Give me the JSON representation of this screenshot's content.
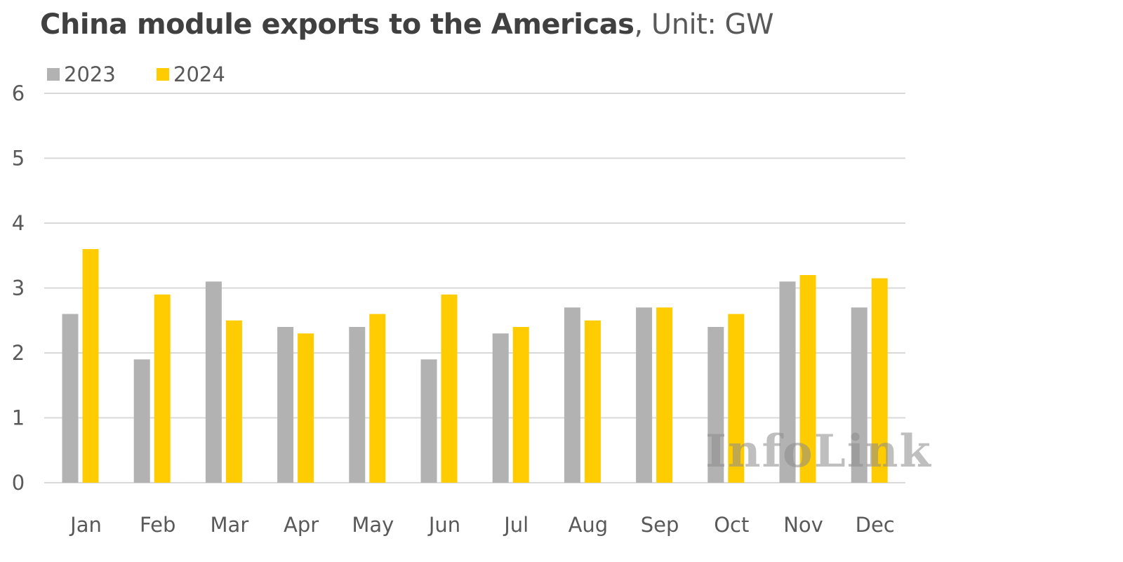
{
  "title": {
    "main": "China module exports to the Americas",
    "unit": ", Unit: GW"
  },
  "watermark": "InfoLink",
  "colors": {
    "series_2023": "#b2b2b2",
    "series_2024": "#fecc00",
    "grid": "#d9d9d9",
    "text": "#595959"
  },
  "chart_data": {
    "type": "bar",
    "title": "China module exports to the Americas, Unit: GW",
    "xlabel": "",
    "ylabel": "",
    "ylim": [
      0,
      6
    ],
    "yticks": [
      "0",
      "1",
      "2",
      "3",
      "4",
      "5",
      "6"
    ],
    "grid": true,
    "legend_position": "top-left",
    "categories": [
      "Jan",
      "Feb",
      "Mar",
      "Apr",
      "May",
      "Jun",
      "Jul",
      "Aug",
      "Sep",
      "Oct",
      "Nov",
      "Dec"
    ],
    "series": [
      {
        "name": "2023",
        "values": [
          2.6,
          1.9,
          3.1,
          2.4,
          2.4,
          1.9,
          2.3,
          2.7,
          2.7,
          2.4,
          3.1,
          2.7
        ]
      },
      {
        "name": "2024",
        "values": [
          3.6,
          2.9,
          2.5,
          2.3,
          2.6,
          2.9,
          2.4,
          2.5,
          2.7,
          2.6,
          3.2,
          3.15
        ]
      }
    ]
  }
}
